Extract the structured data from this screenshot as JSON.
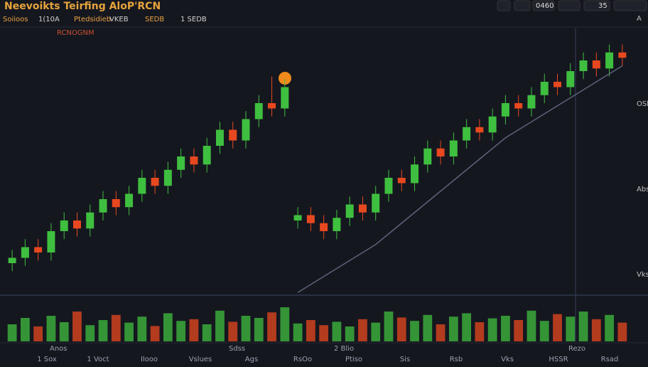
{
  "header": {
    "title": "Neevoikts Teirfing AloP'RCN",
    "legend": [
      "Soiioos",
      "1(10A",
      "Ptedsidieb",
      "VKEB",
      "SEDB",
      "1 SEDB"
    ],
    "sub_legend": "RCNOGNM"
  },
  "toolbar": [
    "0460",
    "35"
  ],
  "right_labels": [
    "A",
    "OSbB",
    "Abs",
    "Vks"
  ],
  "axis_labels": [
    "Anos",
    "Sdss",
    "2 Blio",
    "Rezo"
  ],
  "footer_labels": [
    "1 Sox",
    "1 Voct",
    "Ilooo",
    "Vslues",
    "Ags",
    "RsOo",
    "Ptiso",
    "Sis",
    "Rsb",
    "Vks",
    "HSSR",
    "Rsad"
  ],
  "chart_data": {
    "type": "candlestick",
    "up_color": "#3fbf3f",
    "down_color": "#e8481f",
    "ylim": [
      0,
      100
    ],
    "vlim": [
      0,
      100
    ],
    "open": [
      12,
      14,
      18,
      16,
      24,
      28,
      25,
      31,
      36,
      33,
      38,
      44,
      41,
      47,
      52,
      49,
      56,
      62,
      58,
      66,
      72,
      70,
      28,
      30,
      27,
      24,
      29,
      34,
      31,
      38,
      44,
      42,
      49,
      55,
      52,
      58,
      63,
      61,
      67,
      72,
      70,
      75,
      80,
      78,
      84,
      88,
      85,
      91
    ],
    "high": [
      17,
      21,
      21,
      27,
      31,
      31,
      34,
      39,
      39,
      41,
      47,
      47,
      50,
      55,
      55,
      59,
      65,
      65,
      69,
      75,
      82,
      81,
      33,
      33,
      30,
      32,
      37,
      37,
      41,
      47,
      47,
      52,
      58,
      58,
      61,
      66,
      66,
      70,
      75,
      75,
      78,
      83,
      83,
      87,
      91,
      91,
      94,
      94
    ],
    "low": [
      9,
      11,
      13,
      13,
      21,
      22,
      22,
      28,
      30,
      30,
      35,
      38,
      38,
      44,
      46,
      46,
      53,
      55,
      55,
      63,
      67,
      67,
      25,
      24,
      21,
      21,
      26,
      28,
      28,
      35,
      39,
      39,
      46,
      49,
      49,
      55,
      58,
      58,
      64,
      67,
      67,
      72,
      75,
      75,
      81,
      82,
      82,
      86
    ],
    "close": [
      14,
      18,
      16,
      24,
      28,
      25,
      31,
      36,
      33,
      38,
      44,
      41,
      47,
      52,
      49,
      56,
      62,
      58,
      66,
      72,
      70,
      78,
      30,
      27,
      24,
      29,
      34,
      31,
      38,
      44,
      42,
      49,
      55,
      52,
      58,
      63,
      61,
      67,
      72,
      70,
      75,
      80,
      78,
      84,
      88,
      85,
      91,
      89
    ],
    "volume": [
      40,
      55,
      35,
      60,
      45,
      70,
      38,
      50,
      62,
      44,
      58,
      36,
      66,
      48,
      52,
      40,
      72,
      46,
      60,
      55,
      68,
      80,
      42,
      50,
      38,
      46,
      35,
      52,
      44,
      70,
      56,
      48,
      62,
      40,
      58,
      66,
      45,
      54,
      60,
      50,
      72,
      48,
      64,
      58,
      70,
      52,
      62,
      44
    ],
    "ma": {
      "name": "MA",
      "color": "#5a6478",
      "values": [
        null,
        null,
        null,
        null,
        null,
        null,
        null,
        null,
        null,
        null,
        null,
        null,
        null,
        null,
        null,
        null,
        null,
        null,
        null,
        null,
        null,
        null,
        1,
        4,
        7,
        10,
        13,
        16,
        19,
        23,
        27,
        31,
        35,
        39,
        43,
        47,
        51,
        55,
        59,
        62,
        65,
        68,
        71,
        74,
        77,
        80,
        83,
        86
      ]
    }
  }
}
